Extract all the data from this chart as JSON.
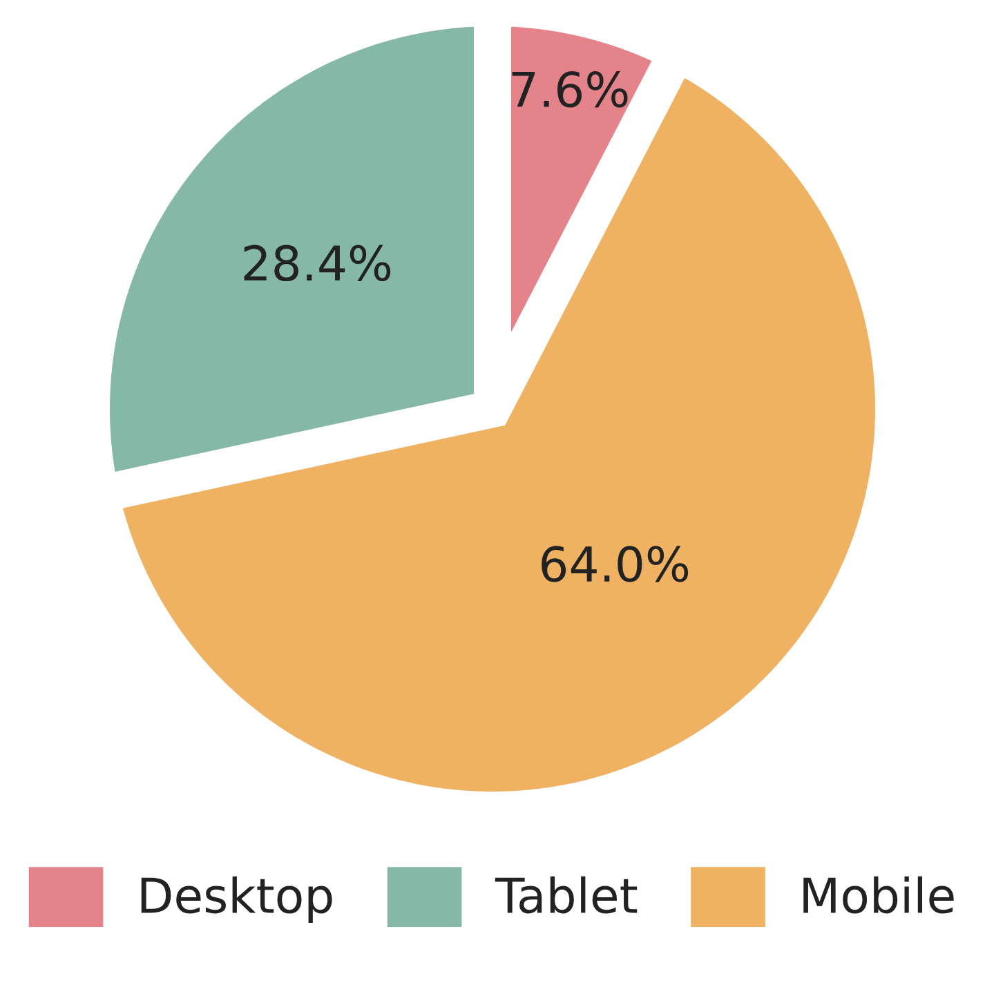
{
  "chart_data": {
    "type": "pie",
    "categories": [
      "Desktop",
      "Tablet",
      "Mobile"
    ],
    "values": [
      7.6,
      28.4,
      64.0
    ],
    "colors": [
      "#e5838b",
      "#86b8a8",
      "#efb162"
    ],
    "value_labels": [
      "7.6%",
      "28.4%",
      "64.0%"
    ],
    "legend": "bottom"
  }
}
